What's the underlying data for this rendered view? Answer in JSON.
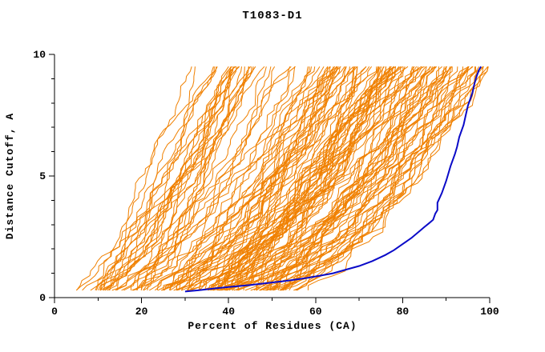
{
  "chart_data": {
    "type": "line",
    "title": "T1083-D1",
    "xlabel": "Percent of Residues (CA)",
    "ylabel": "Distance Cutoff, A",
    "xlim": [
      0,
      100
    ],
    "ylim": [
      0,
      10
    ],
    "x_major_ticks": [
      0,
      20,
      40,
      60,
      80,
      100
    ],
    "x_minor_step": 10,
    "y_major_ticks": [
      0,
      5,
      10
    ],
    "y_minor_step": 1,
    "grid": false,
    "legend": "none",
    "colors": {
      "background": "#ffffff",
      "axis": "#000000",
      "text": "#000000",
      "ensemble": "#f08000",
      "highlight": "#0a0ac8"
    },
    "series": [
      {
        "name": "highlighted-model",
        "color": "#0a0ac8",
        "points": [
          [
            30,
            0.25
          ],
          [
            33,
            0.3
          ],
          [
            37,
            0.38
          ],
          [
            41,
            0.45
          ],
          [
            45,
            0.52
          ],
          [
            49,
            0.6
          ],
          [
            53,
            0.68
          ],
          [
            57,
            0.78
          ],
          [
            61,
            0.9
          ],
          [
            64,
            1.0
          ],
          [
            67,
            1.15
          ],
          [
            70,
            1.3
          ],
          [
            73,
            1.5
          ],
          [
            76,
            1.75
          ],
          [
            78,
            1.95
          ],
          [
            80,
            2.2
          ],
          [
            82,
            2.45
          ],
          [
            84,
            2.75
          ],
          [
            85,
            2.9
          ],
          [
            86,
            3.05
          ],
          [
            87,
            3.2
          ],
          [
            87.5,
            3.45
          ],
          [
            88,
            3.6
          ],
          [
            88,
            3.9
          ],
          [
            89,
            4.3
          ],
          [
            90,
            4.8
          ],
          [
            90.5,
            5.1
          ],
          [
            91,
            5.4
          ],
          [
            92,
            5.9
          ],
          [
            92.5,
            6.2
          ],
          [
            93,
            6.6
          ],
          [
            94,
            7.1
          ],
          [
            94.5,
            7.5
          ],
          [
            95,
            7.9
          ],
          [
            96,
            8.4
          ],
          [
            96.5,
            8.8
          ],
          [
            97,
            9.1
          ],
          [
            97.5,
            9.35
          ],
          [
            98,
            9.5
          ]
        ]
      }
    ],
    "ensemble": {
      "name": "prediction-models",
      "color": "#f08000",
      "count": 140,
      "seed": 7,
      "y_start": 0.3,
      "y_end": 9.5,
      "y_step": 0.2,
      "x_start_range": [
        8,
        56
      ],
      "x_end_range": [
        36,
        100
      ]
    }
  }
}
